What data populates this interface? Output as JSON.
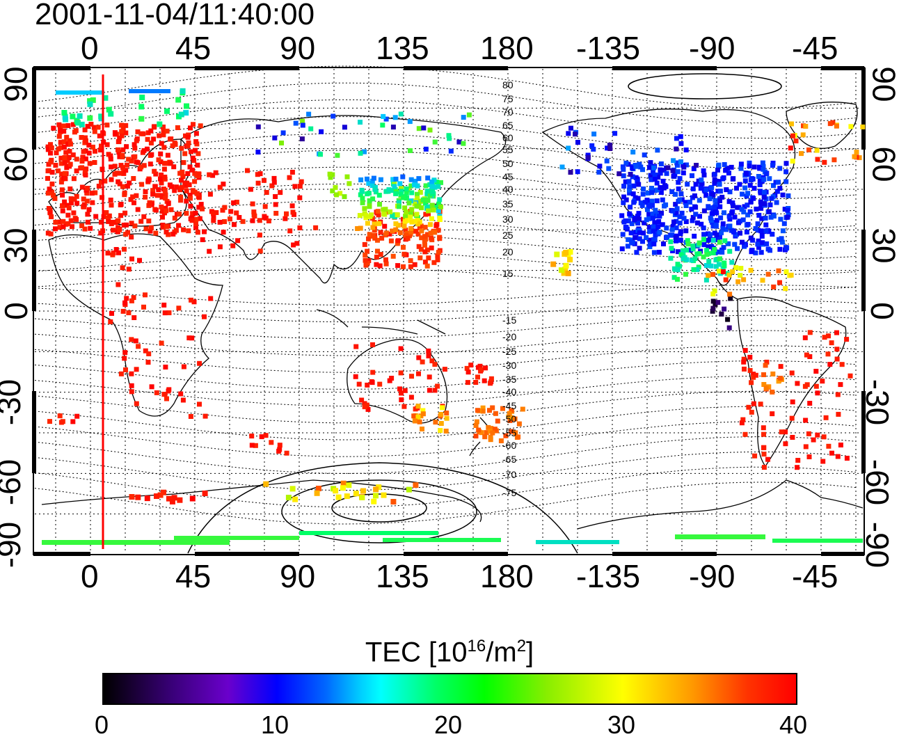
{
  "timestamp": "2001-11-04/11:40:00",
  "axes": {
    "top_ticks": [
      "0",
      "45",
      "90",
      "135",
      "180",
      "-135",
      "-90",
      "-45"
    ],
    "bottom_ticks": [
      "0",
      "45",
      "90",
      "135",
      "180",
      "-135",
      "-90",
      "-45"
    ],
    "left_ticks": [
      "90",
      "60",
      "30",
      "0",
      "-30",
      "-60",
      "-90"
    ],
    "right_ticks": [
      "90",
      "60",
      "30",
      "0",
      "-30",
      "-60",
      "-90"
    ]
  },
  "contour_labels": [
    "80",
    "75",
    "70",
    "65",
    "60",
    "55",
    "50",
    "45",
    "40",
    "35",
    "30",
    "25",
    "20",
    "15",
    "-15",
    "-20",
    "-25",
    "-30",
    "-35",
    "-40",
    "-45",
    "-50",
    "-55",
    "-60",
    "-65",
    "-70",
    "-75"
  ],
  "colorbar": {
    "title_main": "TEC  [10",
    "title_exp1": "16",
    "title_mid": "/m",
    "title_exp2": "2",
    "title_end": "]",
    "ticks": [
      "0",
      "10",
      "20",
      "30",
      "40"
    ],
    "range": [
      0,
      40
    ]
  },
  "colors": {
    "red_track": "#ff0000",
    "tec_high": "#ff0000",
    "tec_low": "#000000"
  }
}
